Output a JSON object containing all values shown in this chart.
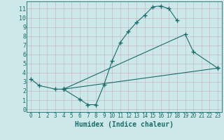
{
  "background_color": "#cce8e8",
  "grid_color": "#c8b8c8",
  "line_color": "#1a6b6b",
  "xlabel": "Humidex (Indice chaleur)",
  "xlim": [
    -0.5,
    23.5
  ],
  "ylim": [
    -0.3,
    11.8
  ],
  "xticks": [
    0,
    1,
    2,
    3,
    4,
    5,
    6,
    7,
    8,
    9,
    10,
    11,
    12,
    13,
    14,
    15,
    16,
    17,
    18,
    19,
    20,
    21,
    22,
    23
  ],
  "yticks": [
    0,
    1,
    2,
    3,
    4,
    5,
    6,
    7,
    8,
    9,
    10,
    11
  ],
  "lines": [
    {
      "x": [
        0,
        1,
        3,
        4,
        6,
        7,
        8,
        9,
        10,
        11,
        12,
        13,
        14,
        15,
        16,
        17,
        18
      ],
      "y": [
        3.3,
        2.6,
        2.2,
        2.2,
        1.1,
        0.5,
        0.5,
        2.7,
        5.3,
        7.3,
        8.5,
        9.5,
        10.3,
        11.2,
        11.3,
        11.0,
        9.7
      ]
    },
    {
      "x": [
        4,
        19,
        20,
        23
      ],
      "y": [
        2.2,
        8.2,
        6.3,
        4.5
      ]
    },
    {
      "x": [
        4,
        23
      ],
      "y": [
        2.2,
        4.5
      ]
    }
  ],
  "xlabel_fontsize": 7,
  "tick_fontsize": 5.5
}
